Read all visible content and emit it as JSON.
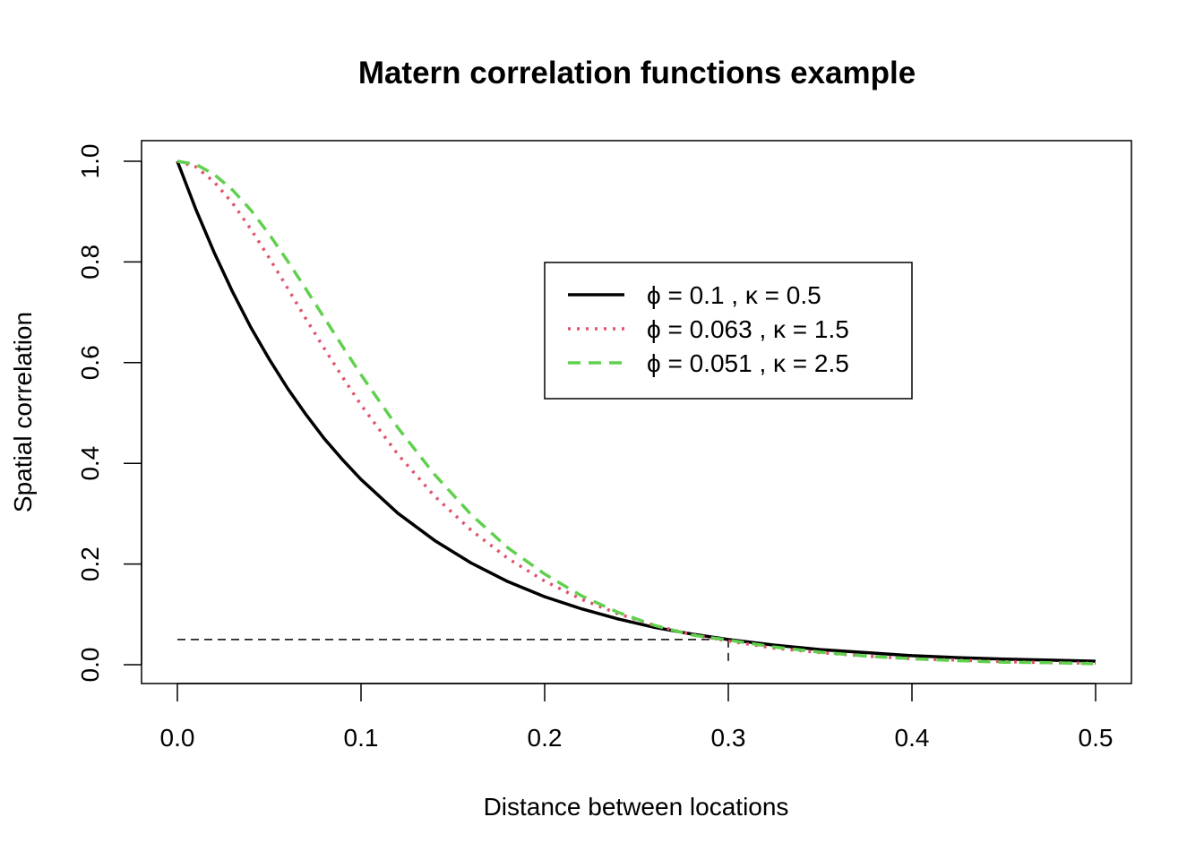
{
  "chart_data": {
    "type": "line",
    "title": "Matern correlation functions example",
    "xlabel": "Distance between locations",
    "ylabel": "Spatial correlation",
    "xlim": [
      0,
      0.5
    ],
    "ylim": [
      0,
      1
    ],
    "x_ticks": [
      "0.0",
      "0.1",
      "0.2",
      "0.3",
      "0.4",
      "0.5"
    ],
    "y_ticks": [
      "0.0",
      "0.2",
      "0.4",
      "0.6",
      "0.8",
      "1.0"
    ],
    "grid": false,
    "legend_position": "top-right",
    "x": [
      0,
      0.01,
      0.02,
      0.03,
      0.04,
      0.05,
      0.06,
      0.07,
      0.08,
      0.09,
      0.1,
      0.12,
      0.14,
      0.16,
      0.18,
      0.2,
      0.22,
      0.24,
      0.26,
      0.28,
      0.3,
      0.325,
      0.35,
      0.375,
      0.4,
      0.425,
      0.45,
      0.475,
      0.5
    ],
    "series": [
      {
        "name": "ϕ = 0.1 ,  κ = 0.5",
        "color": "#000000",
        "dash": "solid",
        "values": [
          1.0,
          0.905,
          0.819,
          0.741,
          0.67,
          0.607,
          0.549,
          0.497,
          0.449,
          0.407,
          0.368,
          0.301,
          0.247,
          0.202,
          0.165,
          0.135,
          0.111,
          0.091,
          0.074,
          0.061,
          0.05,
          0.039,
          0.03,
          0.024,
          0.018,
          0.014,
          0.011,
          0.009,
          0.007
        ]
      },
      {
        "name": "ϕ = 0.063 ,  κ = 1.5",
        "color": "#DF536B",
        "dash": "dotted",
        "values": [
          1.0,
          0.989,
          0.959,
          0.917,
          0.865,
          0.808,
          0.748,
          0.687,
          0.628,
          0.571,
          0.516,
          0.418,
          0.335,
          0.267,
          0.211,
          0.166,
          0.13,
          0.101,
          0.078,
          0.06,
          0.047,
          0.033,
          0.024,
          0.017,
          0.012,
          0.009,
          0.006,
          0.004,
          0.003
        ]
      },
      {
        "name": "ϕ = 0.051 ,  κ = 2.5",
        "color": "#61D04F",
        "dash": "dashed",
        "values": [
          1.0,
          0.994,
          0.974,
          0.943,
          0.903,
          0.855,
          0.802,
          0.746,
          0.689,
          0.632,
          0.576,
          0.471,
          0.378,
          0.298,
          0.232,
          0.18,
          0.137,
          0.104,
          0.078,
          0.059,
          0.049,
          0.035,
          0.025,
          0.017,
          0.012,
          0.008,
          0.005,
          0.004,
          0.002
        ]
      }
    ],
    "annotations": [
      {
        "type": "dashed-reference",
        "from": [
          0,
          0.05
        ],
        "to": [
          0.3,
          0.05
        ]
      },
      {
        "type": "dashed-reference",
        "from": [
          0.3,
          0.05
        ],
        "to": [
          0.3,
          0
        ]
      }
    ]
  }
}
